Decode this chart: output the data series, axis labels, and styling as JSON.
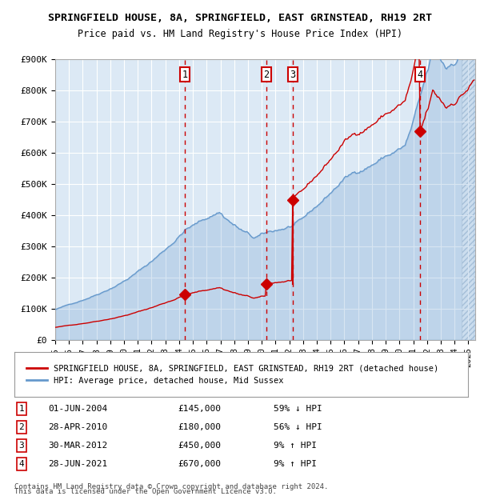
{
  "title_line1": "SPRINGFIELD HOUSE, 8A, SPRINGFIELD, EAST GRINSTEAD, RH19 2RT",
  "title_line2": "Price paid vs. HM Land Registry's House Price Index (HPI)",
  "legend_red": "SPRINGFIELD HOUSE, 8A, SPRINGFIELD, EAST GRINSTEAD, RH19 2RT (detached house)",
  "legend_blue": "HPI: Average price, detached house, Mid Sussex",
  "footnote_line1": "Contains HM Land Registry data © Crown copyright and database right 2024.",
  "footnote_line2": "This data is licensed under the Open Government Licence v3.0.",
  "transactions": [
    {
      "num": 1,
      "date": "01-JUN-2004",
      "price": 145000,
      "pct": "59%",
      "dir": "↓",
      "x_year": 2004.42
    },
    {
      "num": 2,
      "date": "28-APR-2010",
      "price": 180000,
      "pct": "56%",
      "dir": "↓",
      "x_year": 2010.33
    },
    {
      "num": 3,
      "date": "30-MAR-2012",
      "price": 450000,
      "pct": "9%",
      "dir": "↑",
      "x_year": 2012.25
    },
    {
      "num": 4,
      "date": "28-JUN-2021",
      "price": 670000,
      "pct": "9%",
      "dir": "↑",
      "x_year": 2021.49
    }
  ],
  "ylim": [
    0,
    900000
  ],
  "xlim_start": 1995.0,
  "xlim_end": 2025.5,
  "yticks": [
    0,
    100000,
    200000,
    300000,
    400000,
    500000,
    600000,
    700000,
    800000,
    900000
  ],
  "ytick_labels": [
    "£0",
    "£100K",
    "£200K",
    "£300K",
    "£400K",
    "£500K",
    "£600K",
    "£700K",
    "£800K",
    "£900K"
  ],
  "bg_color": "#dce9f5",
  "red_color": "#cc0000",
  "blue_color": "#6699cc",
  "hatch_color": "#bbccdd"
}
